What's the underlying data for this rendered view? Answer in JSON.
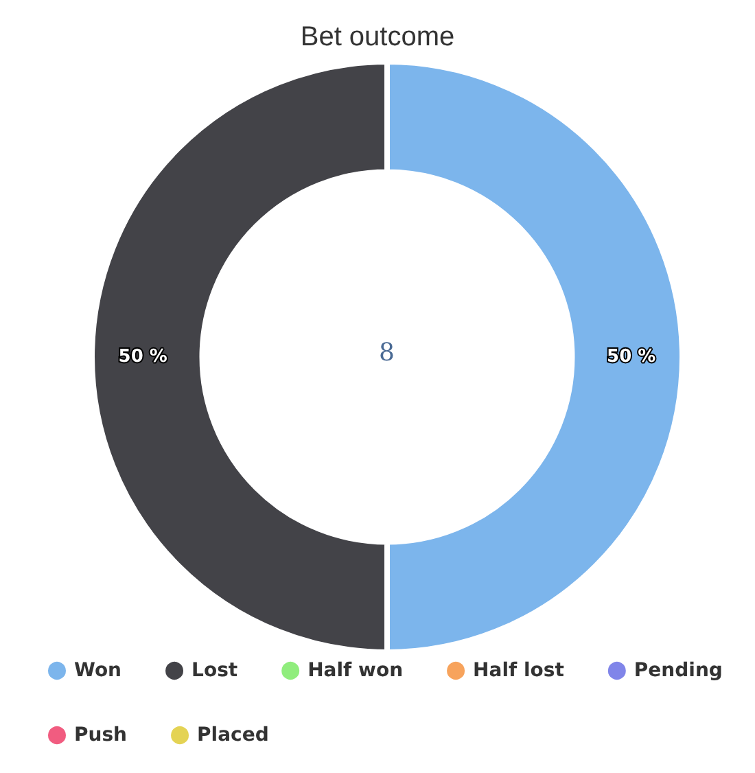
{
  "chart_data": {
    "type": "donut",
    "title": "Bet outcome",
    "categories": [
      "Won",
      "Lost",
      "Half won",
      "Half lost",
      "Pending",
      "Push",
      "Placed"
    ],
    "values": [
      50,
      50,
      0,
      0,
      0,
      0,
      0
    ],
    "colors": [
      "#7cb5ec",
      "#434348",
      "#90ed7d",
      "#f7a35c",
      "#8085e9",
      "#f15c80",
      "#e4d354"
    ],
    "value_labels": [
      "50 %",
      "50 %",
      null,
      null,
      null,
      null,
      null
    ],
    "annotations": [
      "8"
    ],
    "legend": "bottom"
  }
}
